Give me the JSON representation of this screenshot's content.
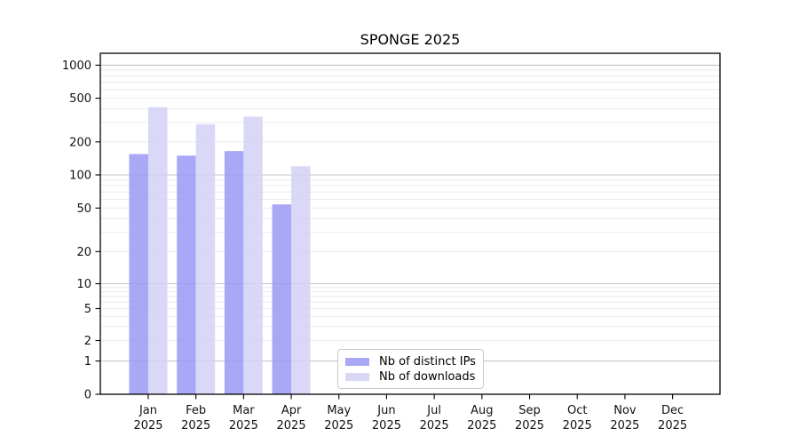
{
  "chart_data": {
    "type": "bar",
    "title": "SPONGE 2025",
    "months": [
      "Jan",
      "Feb",
      "Mar",
      "Apr",
      "May",
      "Jun",
      "Jul",
      "Aug",
      "Sep",
      "Oct",
      "Nov",
      "Dec"
    ],
    "year_label": "2025",
    "categories": [
      "Jan 2025",
      "Feb 2025",
      "Mar 2025",
      "Apr 2025",
      "May 2025",
      "Jun 2025",
      "Jul 2025",
      "Aug 2025",
      "Sep 2025",
      "Oct 2025",
      "Nov 2025",
      "Dec 2025"
    ],
    "series": [
      {
        "name": "Nb of distinct IPs",
        "color": "#9999f5",
        "values": [
          155,
          150,
          165,
          54,
          null,
          null,
          null,
          null,
          null,
          null,
          null,
          null
        ]
      },
      {
        "name": "Nb of downloads",
        "color": "#d2d2f6",
        "values": [
          415,
          290,
          340,
          120,
          null,
          null,
          null,
          null,
          null,
          null,
          null,
          null
        ]
      }
    ],
    "yscale": "symlog",
    "yticks": [
      0,
      1,
      2,
      5,
      10,
      20,
      50,
      100,
      200,
      500,
      1000
    ],
    "ylim": [
      0,
      1300
    ],
    "grid": true,
    "legend_position": "inside lower-center-left"
  },
  "colors": {
    "major_grid": "#c4c4c4",
    "minor_grid": "#ebebeb",
    "frame": "#000000",
    "tick_label": "#111111",
    "legend_border": "#c9c9c9"
  }
}
